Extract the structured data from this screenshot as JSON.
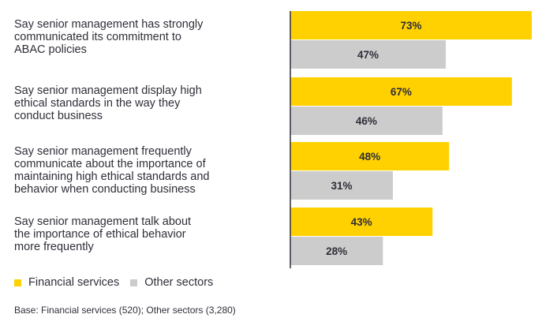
{
  "colors": {
    "primary": "#ffd100",
    "secondary": "#cccccc",
    "axis": "#2e2e38"
  },
  "legend": {
    "primary_label": "Financial services",
    "secondary_label": "Other sectors"
  },
  "footnote": "Base: Financial services (520); Other sectors (3,280)",
  "chart_data": {
    "type": "bar",
    "orientation": "horizontal",
    "categories": [
      "Say senior management has strongly communicated its commitment to ABAC policies",
      "Say senior management display high ethical standards in the way they conduct business",
      "Say senior management frequently communicate about the importance of maintaining high ethical standards and behavior when conducting business",
      "Say senior management talk about the importance of ethical behavior more frequently"
    ],
    "category_lines": [
      [
        "Say senior management has strongly",
        "communicated its commitment to",
        "ABAC policies"
      ],
      [
        "Say senior management display high",
        "ethical standards in the way they",
        "conduct business"
      ],
      [
        "Say senior management frequently",
        "communicate about the importance of",
        "maintaining high ethical standards and",
        "behavior when conducting business"
      ],
      [
        "Say senior management talk about",
        "the importance of ethical behavior",
        "more frequently"
      ]
    ],
    "series": [
      {
        "name": "Financial services",
        "values": [
          73,
          67,
          48,
          43
        ],
        "labels": [
          "73%",
          "67%",
          "48%",
          "43%"
        ]
      },
      {
        "name": "Other sectors",
        "values": [
          47,
          46,
          31,
          28
        ],
        "labels": [
          "47%",
          "46%",
          "31%",
          "28%"
        ]
      }
    ],
    "xlim": [
      0,
      73
    ],
    "legend_position": "bottom-left",
    "grid": false
  }
}
